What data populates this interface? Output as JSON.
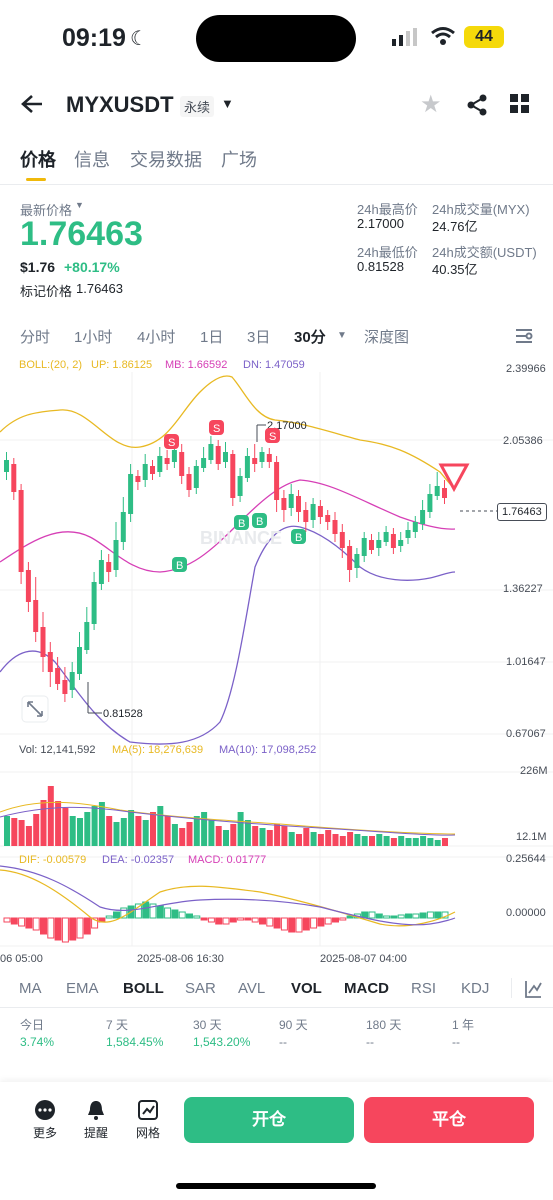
{
  "status_bar": {
    "time": "09:19",
    "battery": "44"
  },
  "header": {
    "symbol": "MYXUSDT",
    "contract_type": "永续"
  },
  "tabs": [
    {
      "label": "价格",
      "active": true
    },
    {
      "label": "信息",
      "active": false
    },
    {
      "label": "交易数据",
      "active": false
    },
    {
      "label": "广场",
      "active": false
    }
  ],
  "price": {
    "latest_label": "最新价格",
    "latest": "1.76463",
    "usd": "$1.76",
    "change": "+80.17%",
    "mark_label": "标记价格",
    "mark": "1.76463"
  },
  "stats": {
    "high_label": "24h最高价",
    "high": "2.17000",
    "vol_label": "24h成交量(MYX)",
    "vol": "24.76亿",
    "low_label": "24h最低价",
    "low": "0.81528",
    "amount_label": "24h成交额(USDT)",
    "amount": "40.35亿"
  },
  "timeframes": [
    "分时",
    "1小时",
    "4小时",
    "1日",
    "3日",
    "30分",
    "深度图"
  ],
  "active_timeframe": "30分",
  "boll_legend": {
    "title": "BOLL:(20, 2)",
    "up": "UP: 1.86125",
    "mb": "MB: 1.66592",
    "dn": "DN: 1.47059"
  },
  "price_axis": [
    "2.39966",
    "2.05386",
    "1.76463",
    "1.36227",
    "1.01647",
    "0.67067"
  ],
  "annotations": {
    "high": "2.17000",
    "low": "0.81528",
    "watermark": "BINANCE"
  },
  "vol_legend": {
    "vol": "Vol: 12,141,592",
    "ma5": "MA(5): 18,276,639",
    "ma10": "MA(10): 17,098,252"
  },
  "vol_axis": [
    "226M",
    "12.1M"
  ],
  "macd_legend": {
    "dif": "DIF: -0.00579",
    "dea": "DEA: -0.02357",
    "macd": "MACD: 0.01777"
  },
  "macd_axis": [
    "0.25644",
    "0.00000"
  ],
  "time_axis": [
    "06 05:00",
    "2025-08-06 16:30",
    "2025-08-07 04:00"
  ],
  "indicators": [
    "MA",
    "EMA",
    "BOLL",
    "SAR",
    "AVL",
    "VOL",
    "MACD",
    "RSI",
    "KDJ"
  ],
  "active_indicators": [
    "BOLL",
    "VOL",
    "MACD"
  ],
  "performance": [
    {
      "label": "今日",
      "value": "3.74%"
    },
    {
      "label": "7 天",
      "value": "1,584.45%"
    },
    {
      "label": "30 天",
      "value": "1,543.20%"
    },
    {
      "label": "90 天",
      "value": "--"
    },
    {
      "label": "180 天",
      "value": "--"
    },
    {
      "label": "1 年",
      "value": "--"
    }
  ],
  "bottom_bar": {
    "more": "更多",
    "alert": "提醒",
    "grid": "网格",
    "open": "开仓",
    "close": "平仓"
  },
  "colors": {
    "up": "#2ebd85",
    "down": "#f6465d",
    "accent": "#f0b90b",
    "boll_up": "#e8b923",
    "boll_mb": "#d63fb6",
    "boll_dn": "#7b61c8"
  }
}
